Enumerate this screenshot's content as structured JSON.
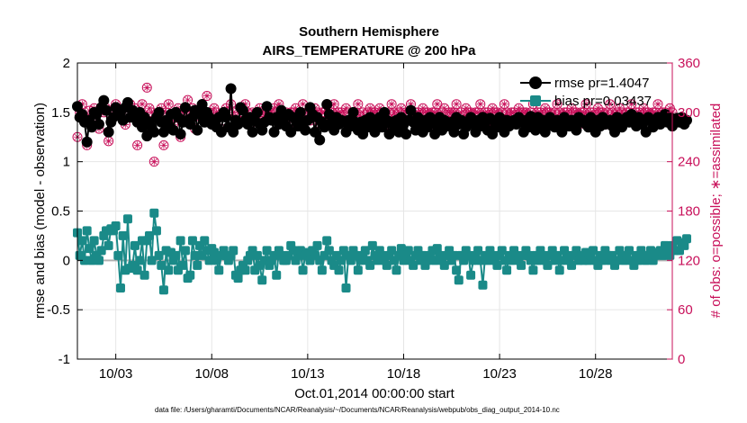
{
  "chart_data": {
    "type": "line",
    "title_line1": "Southern Hemisphere",
    "title_line2": "AIRS_TEMPERATURE @ 200 hPa",
    "xlabel": "Oct.01,2014 00:00:00 start",
    "ylabel_left": "rmse and bias (model - observation)",
    "ylabel_right": "# of obs: o=possible; ∗=assimilated",
    "xlim": [
      0,
      31
    ],
    "ylim_left": [
      -1,
      2
    ],
    "ylim_right": [
      0,
      360
    ],
    "xticks": [
      {
        "value": 2,
        "label": "10/03"
      },
      {
        "value": 7,
        "label": "10/08"
      },
      {
        "value": 12,
        "label": "10/13"
      },
      {
        "value": 17,
        "label": "10/18"
      },
      {
        "value": 22,
        "label": "10/23"
      },
      {
        "value": 27,
        "label": "10/28"
      }
    ],
    "yticks_left": [
      {
        "value": 2,
        "label": "2"
      },
      {
        "value": 1.5,
        "label": "1.5"
      },
      {
        "value": 1,
        "label": "1"
      },
      {
        "value": 0.5,
        "label": "0.5"
      },
      {
        "value": 0,
        "label": "0"
      },
      {
        "value": -0.5,
        "label": "-0.5"
      },
      {
        "value": -1,
        "label": "-1"
      }
    ],
    "yticks_right": [
      {
        "value": 360,
        "label": "360"
      },
      {
        "value": 300,
        "label": "300"
      },
      {
        "value": 240,
        "label": "240"
      },
      {
        "value": 180,
        "label": "180"
      },
      {
        "value": 120,
        "label": "120"
      },
      {
        "value": 60,
        "label": "60"
      },
      {
        "value": 0,
        "label": "0"
      }
    ],
    "grid": true,
    "legend_position": "top-right",
    "legend": [
      {
        "label": "rmse pr=1.4047",
        "color": "#000000"
      },
      {
        "label": "bias pr=0.03437",
        "color": "#1a8a88"
      }
    ],
    "series": [
      {
        "name": "rmse",
        "axis": "left",
        "color": "#000000",
        "x_start": 0.0,
        "x_step": 0.125,
        "values": [
          1.56,
          1.45,
          1.48,
          1.4,
          1.2,
          1.42,
          1.35,
          1.5,
          1.48,
          1.38,
          1.55,
          1.62,
          1.52,
          1.3,
          1.4,
          1.45,
          1.55,
          1.47,
          1.5,
          1.42,
          1.55,
          1.6,
          1.45,
          1.52,
          1.48,
          1.4,
          1.5,
          1.35,
          1.45,
          1.26,
          1.4,
          1.35,
          1.3,
          1.45,
          1.5,
          1.4,
          1.3,
          1.42,
          1.36,
          1.48,
          1.32,
          1.5,
          1.45,
          1.28,
          1.4,
          1.55,
          1.42,
          1.38,
          1.45,
          1.52,
          1.32,
          1.48,
          1.58,
          1.4,
          1.5,
          1.45,
          1.38,
          1.42,
          1.35,
          1.45,
          1.3,
          1.5,
          1.45,
          1.35,
          1.74,
          1.3,
          1.42,
          1.38,
          1.55,
          1.52,
          1.42,
          1.38,
          1.45,
          1.3,
          1.42,
          1.5,
          1.38,
          1.32,
          1.4,
          1.56,
          1.45,
          1.42,
          1.3,
          1.45,
          1.38,
          1.52,
          1.44,
          1.36,
          1.48,
          1.3,
          1.45,
          1.42,
          1.36,
          1.5,
          1.4,
          1.32,
          1.42,
          1.55,
          1.48,
          1.3,
          1.45,
          1.22,
          1.4,
          1.35,
          1.58,
          1.48,
          1.4,
          1.32,
          1.45,
          1.38,
          1.42,
          1.4,
          1.3,
          1.42,
          1.36,
          1.5,
          1.4,
          1.32,
          1.4,
          1.28,
          1.42,
          1.35,
          1.45,
          1.4,
          1.3,
          1.38,
          1.45,
          1.35,
          1.5,
          1.42,
          1.28,
          1.4,
          1.36,
          1.42,
          1.3,
          1.45,
          1.38,
          1.28,
          1.42,
          1.52,
          1.4,
          1.32,
          1.45,
          1.38,
          1.3,
          1.42,
          1.35,
          1.45,
          1.4,
          1.28,
          1.38,
          1.45,
          1.32,
          1.42,
          1.4,
          1.36,
          1.4,
          1.3,
          1.45,
          1.38,
          1.42,
          1.28,
          1.35,
          1.4,
          1.45,
          1.38,
          1.3,
          1.42,
          1.36,
          1.45,
          1.4,
          1.32,
          1.44,
          1.28,
          1.4,
          1.35,
          1.45,
          1.38,
          1.3,
          1.42,
          1.36,
          1.4,
          1.42,
          1.38,
          1.45,
          1.4,
          1.3,
          1.42,
          1.35,
          1.46,
          1.4,
          1.32,
          1.45,
          1.38,
          1.42,
          1.3,
          1.36,
          1.45,
          1.4,
          1.35,
          1.42,
          1.38,
          1.3,
          1.45,
          1.4,
          1.36,
          1.42,
          1.38,
          1.32,
          1.45,
          1.4,
          1.42,
          1.38,
          1.35,
          1.45,
          1.4,
          1.3,
          1.42,
          1.36,
          1.45,
          1.38,
          1.4,
          1.42,
          1.36,
          1.3,
          1.45,
          1.4,
          1.35,
          1.42,
          1.45,
          1.4,
          1.48,
          1.42,
          1.36,
          1.45,
          1.38,
          1.4,
          1.3,
          1.45,
          1.42,
          1.35,
          1.4,
          1.45,
          1.38,
          1.42,
          1.48,
          1.4,
          1.45,
          1.36,
          1.42,
          1.44,
          1.4,
          1.45,
          1.38,
          1.42
        ]
      },
      {
        "name": "bias",
        "axis": "left",
        "color": "#1a8a88",
        "x_start": 0.0,
        "x_step": 0.125,
        "values": [
          0.28,
          0.05,
          0.2,
          0.0,
          0.3,
          0.12,
          0.0,
          0.2,
          0.05,
          0.0,
          0.1,
          0.25,
          0.3,
          0.15,
          0.32,
          0.3,
          0.35,
          0.05,
          -0.28,
          0.25,
          -0.1,
          0.42,
          -0.08,
          -0.05,
          0.15,
          -0.1,
          0.0,
          0.2,
          -0.15,
          0.2,
          0.25,
          0.0,
          0.48,
          0.3,
          0.05,
          -0.05,
          -0.3,
          0.1,
          -0.1,
          0.08,
          0.0,
          0.05,
          -0.1,
          0.2,
          -0.05,
          0.1,
          -0.18,
          -0.15,
          0.2,
          0.05,
          -0.05,
          0.15,
          0.05,
          0.2,
          0.1,
          0.0,
          0.12,
          0.08,
          0.0,
          -0.1,
          0.05,
          0.1,
          0.05,
          0.0,
          0.05,
          0.1,
          -0.15,
          -0.18,
          -0.1,
          -0.05,
          -0.1,
          0.0,
          0.05,
          0.1,
          -0.1,
          0.05,
          -0.05,
          -0.2,
          0.0,
          0.1,
          -0.05,
          0.0,
          0.05,
          -0.15,
          0.1,
          0.05,
          0.0,
          0.0,
          0.05,
          0.15,
          0.1,
          0.0,
          0.05,
          0.1,
          -0.1,
          0.05,
          0.08,
          0.0,
          0.1,
          0.05,
          0.15,
          0.0,
          -0.1,
          0.05,
          0.2,
          0.1,
          0.0,
          -0.05,
          0.05,
          -0.1,
          0.0,
          0.1,
          -0.28,
          0.05,
          0.0,
          0.1,
          0.05,
          -0.1,
          0.0,
          0.05,
          0.1,
          0.0,
          -0.05,
          0.15,
          0.05,
          0.0,
          0.1,
          0.05,
          0.0,
          -0.05,
          0.05,
          0.1,
          0.0,
          -0.1,
          0.05,
          0.12,
          0.0,
          0.05,
          0.1,
          0.0,
          -0.05,
          0.05,
          0.1,
          0.0,
          0.05,
          -0.05,
          0.0,
          0.05,
          0.1,
          0.0,
          0.12,
          0.05,
          0.0,
          -0.05,
          0.05,
          0.1,
          0.0,
          0.05,
          -0.1,
          -0.2,
          0.05,
          0.0,
          0.1,
          0.05,
          -0.15,
          0.0,
          0.05,
          0.1,
          0.0,
          -0.25,
          0.05,
          0.0,
          0.1,
          0.05,
          0.0,
          -0.05,
          0.05,
          0.1,
          0.0,
          -0.1,
          0.05,
          0.0,
          0.1,
          0.05,
          0.0,
          -0.05,
          0.05,
          0.1,
          0.05,
          0.0,
          -0.1,
          0.05,
          0.0,
          0.1,
          0.05,
          0.0,
          -0.05,
          0.05,
          0.1,
          0.0,
          0.05,
          -0.1,
          0.0,
          0.1,
          0.05,
          0.0,
          -0.05,
          0.05,
          0.1,
          0.0,
          0.05,
          0.0,
          0.08,
          0.0,
          0.05,
          0.1,
          0.0,
          -0.05,
          0.05,
          0.0,
          0.1,
          0.05,
          0.0,
          0.05,
          -0.05,
          0.0,
          0.1,
          0.05,
          0.0,
          0.05,
          0.1,
          0.0,
          -0.05,
          0.05,
          0.0,
          0.1,
          0.05,
          0.0,
          0.05,
          0.1,
          0.0,
          0.05,
          0.08,
          0.1,
          0.05,
          0.15,
          0.1,
          0.05,
          0.15,
          0.1,
          0.2,
          0.1,
          0.18,
          0.15,
          0.22
        ]
      },
      {
        "name": "obs possible",
        "axis": "right",
        "color": "#c8105a",
        "x_start": 0.0,
        "x_step": 0.125,
        "values": [
          270,
          300,
          310,
          295,
          260,
          302,
          290,
          305,
          300,
          280,
          302,
          300,
          305,
          265,
          290,
          300,
          310,
          298,
          300,
          290,
          285,
          295,
          310,
          300,
          305,
          260,
          300,
          310,
          295,
          330,
          305,
          300,
          240,
          295,
          300,
          305,
          260,
          300,
          310,
          290,
          285,
          300,
          305,
          270,
          300,
          290,
          315,
          300,
          305,
          280,
          300,
          295,
          310,
          300,
          320,
          300,
          290,
          305,
          300,
          295,
          280,
          300,
          305,
          300,
          310,
          300,
          295,
          290,
          305,
          300,
          310,
          300,
          285,
          300,
          290,
          300,
          305,
          300,
          295,
          300,
          300,
          290,
          305,
          300,
          310,
          300,
          295,
          300,
          285,
          300,
          300,
          305,
          290,
          300,
          310,
          295,
          300,
          290,
          300,
          305,
          300,
          285,
          300,
          300,
          290,
          305,
          300,
          310,
          295,
          300,
          300,
          290,
          305,
          300,
          285,
          300,
          300,
          310,
          295,
          300,
          290,
          300,
          305,
          300,
          300,
          290,
          305,
          300,
          300,
          285,
          300,
          310,
          300,
          295,
          300,
          305,
          290,
          300,
          300,
          310,
          295,
          300,
          300,
          290,
          305,
          300,
          300,
          285,
          300,
          300,
          310,
          295,
          300,
          305,
          290,
          300,
          300,
          300,
          310,
          295,
          300,
          290,
          305,
          300,
          300,
          285,
          300,
          300,
          310,
          295,
          300,
          300,
          290,
          305,
          300,
          300,
          285,
          300,
          310,
          300,
          295,
          300,
          300,
          290,
          305,
          300,
          300,
          300,
          285,
          300,
          310,
          295,
          300,
          300,
          290,
          305,
          300,
          300,
          285,
          300,
          310,
          300,
          295,
          300,
          300,
          290,
          305,
          300,
          300,
          285,
          300,
          300,
          310,
          295,
          300,
          300,
          290,
          305,
          300,
          300,
          285,
          300,
          310,
          300,
          295,
          300,
          305,
          300,
          290,
          300,
          300,
          310,
          295,
          300,
          300,
          290,
          305,
          300,
          300,
          285,
          300,
          300,
          310,
          295,
          300,
          300,
          290,
          305,
          300,
          300,
          285,
          300
        ]
      }
    ]
  },
  "footnote": "data file: /Users/gharamti/Documents/NCAR/Reanalysis/~/Documents/NCAR/Reanalysis/webpub/obs_diag_output_2014-10.nc",
  "colors": {
    "rmse": "#000000",
    "bias": "#1a8a88",
    "obs": "#c8105a",
    "zero_line": "#b0b0b0",
    "grid": "#e6e6e6"
  }
}
